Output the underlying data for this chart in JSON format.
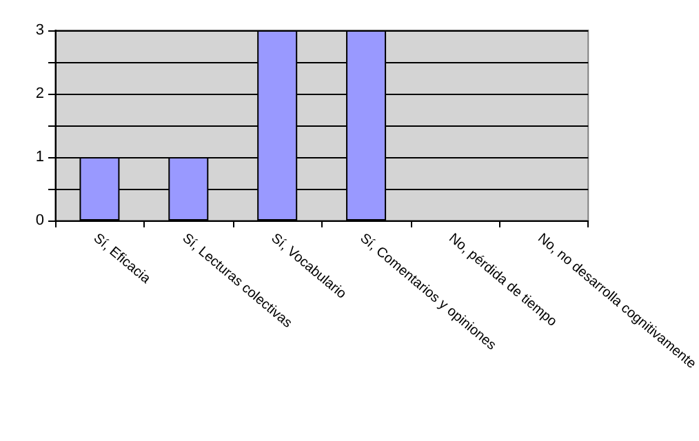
{
  "chart_data": {
    "type": "bar",
    "categories": [
      "Sí, Eficacia",
      "Sí, Lecturas colectivas",
      "Sí, Vocabulario",
      "Sí, Comentarios y opiniones",
      "No, pérdida de tiempo",
      "No, no desarrolla cognitivamente"
    ],
    "values": [
      1,
      1,
      3,
      3,
      0,
      0
    ],
    "color": "#9999ff",
    "ylim": [
      0,
      3
    ],
    "yticks": [
      0,
      {
        "value": 0.5,
        "label": null
      },
      1,
      {
        "value": 1.5,
        "label": null
      },
      2,
      {
        "value": 2.5,
        "label": null
      },
      3
    ],
    "grid": "y"
  }
}
